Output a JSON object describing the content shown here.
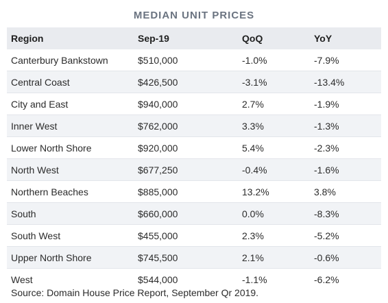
{
  "title": "MEDIAN UNIT PRICES",
  "columns": [
    "Region",
    "Sep-19",
    "QoQ",
    "YoY"
  ],
  "rows": [
    {
      "region": "Canterbury Bankstown",
      "price": "$510,000",
      "qoq": "-1.0%",
      "yoy": "-7.9%"
    },
    {
      "region": "Central Coast",
      "price": "$426,500",
      "qoq": "-3.1%",
      "yoy": "-13.4%"
    },
    {
      "region": "City and East",
      "price": "$940,000",
      "qoq": "2.7%",
      "yoy": "-1.9%"
    },
    {
      "region": "Inner West",
      "price": "$762,000",
      "qoq": "3.3%",
      "yoy": "-1.3%"
    },
    {
      "region": "Lower North Shore",
      "price": "$920,000",
      "qoq": "5.4%",
      "yoy": "-2.3%"
    },
    {
      "region": "North West",
      "price": "$677,250",
      "qoq": "-0.4%",
      "yoy": "-1.6%"
    },
    {
      "region": "Northern Beaches",
      "price": "$885,000",
      "qoq": "13.2%",
      "yoy": "3.8%"
    },
    {
      "region": "South",
      "price": "$660,000",
      "qoq": "0.0%",
      "yoy": "-8.3%"
    },
    {
      "region": "South West",
      "price": "$455,000",
      "qoq": "2.3%",
      "yoy": "-5.2%"
    },
    {
      "region": "Upper North Shore",
      "price": "$745,500",
      "qoq": "2.1%",
      "yoy": "-0.6%"
    },
    {
      "region": "West",
      "price": "$544,000",
      "qoq": "-1.1%",
      "yoy": "-6.2%"
    }
  ],
  "source": "Source: Domain House Price Report, September Qr 2019."
}
